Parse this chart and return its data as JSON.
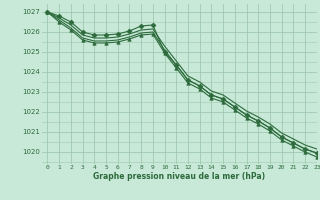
{
  "title": "Graphe pression niveau de la mer (hPa)",
  "bg_color": "#c8e8d8",
  "grid_color": "#a0c8b0",
  "line_color": "#2d6b3c",
  "xlim": [
    -0.5,
    23
  ],
  "ylim": [
    1019.4,
    1027.4
  ],
  "yticks": [
    1020,
    1021,
    1022,
    1023,
    1024,
    1025,
    1026,
    1027
  ],
  "xticks": [
    0,
    1,
    2,
    3,
    4,
    5,
    6,
    7,
    8,
    9,
    10,
    11,
    12,
    13,
    14,
    15,
    16,
    17,
    18,
    19,
    20,
    21,
    22,
    23
  ],
  "series": [
    {
      "x": [
        0,
        1,
        2,
        3,
        4,
        5,
        6,
        7,
        8,
        9,
        10,
        11,
        12,
        13,
        14,
        15,
        16,
        17,
        18,
        19,
        20,
        21,
        22,
        23
      ],
      "y": [
        1027.0,
        1026.8,
        1026.5,
        1026.0,
        1025.85,
        1025.85,
        1025.9,
        1026.05,
        1026.3,
        1026.35,
        1025.0,
        1024.35,
        1023.6,
        1023.3,
        1022.85,
        1022.65,
        1022.25,
        1021.85,
        1021.55,
        1021.2,
        1020.75,
        1020.45,
        1020.15,
        1019.95
      ],
      "marker": "D",
      "markersize": 2.5
    },
    {
      "x": [
        0,
        1,
        2,
        3,
        4,
        5,
        6,
        7,
        8,
        9,
        10,
        11,
        12,
        13,
        14,
        15,
        16,
        17,
        18,
        19,
        20,
        21,
        22,
        23
      ],
      "y": [
        1027.0,
        1026.7,
        1026.35,
        1025.85,
        1025.7,
        1025.7,
        1025.75,
        1025.9,
        1026.1,
        1026.15,
        1025.3,
        1024.55,
        1023.8,
        1023.5,
        1023.05,
        1022.85,
        1022.45,
        1022.05,
        1021.75,
        1021.4,
        1020.95,
        1020.65,
        1020.35,
        1020.15
      ],
      "marker": null,
      "markersize": 0
    },
    {
      "x": [
        0,
        1,
        2,
        3,
        4,
        5,
        6,
        7,
        8,
        9,
        10,
        11,
        12,
        13,
        14,
        15,
        16,
        17,
        18,
        19,
        20,
        21,
        22,
        23
      ],
      "y": [
        1027.0,
        1026.6,
        1026.2,
        1025.7,
        1025.55,
        1025.55,
        1025.6,
        1025.75,
        1025.95,
        1026.0,
        1025.1,
        1024.35,
        1023.6,
        1023.3,
        1022.85,
        1022.65,
        1022.25,
        1021.85,
        1021.55,
        1021.2,
        1020.75,
        1020.45,
        1020.15,
        1019.95
      ],
      "marker": null,
      "markersize": 0
    },
    {
      "x": [
        0,
        1,
        2,
        3,
        4,
        5,
        6,
        7,
        8,
        9,
        10,
        11,
        12,
        13,
        14,
        15,
        16,
        17,
        18,
        19,
        20,
        21,
        22,
        23
      ],
      "y": [
        1027.0,
        1026.5,
        1026.1,
        1025.6,
        1025.45,
        1025.45,
        1025.5,
        1025.65,
        1025.85,
        1025.9,
        1024.95,
        1024.2,
        1023.45,
        1023.15,
        1022.7,
        1022.5,
        1022.1,
        1021.7,
        1021.4,
        1021.05,
        1020.6,
        1020.3,
        1020.0,
        1019.75
      ],
      "marker": "^",
      "markersize": 2.5
    }
  ]
}
